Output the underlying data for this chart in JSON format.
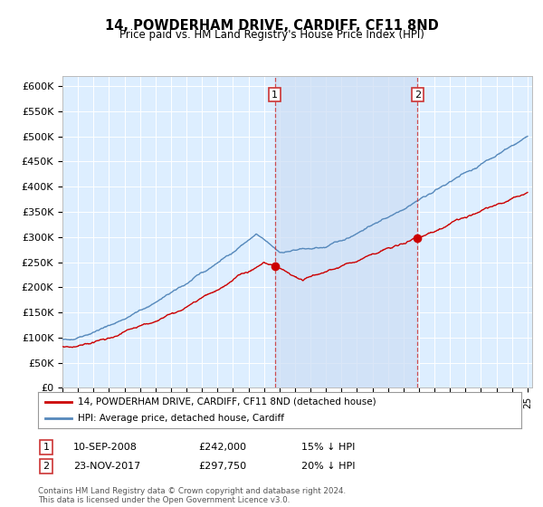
{
  "title": "14, POWDERHAM DRIVE, CARDIFF, CF11 8ND",
  "subtitle": "Price paid vs. HM Land Registry's House Price Index (HPI)",
  "legend_label_red": "14, POWDERHAM DRIVE, CARDIFF, CF11 8ND (detached house)",
  "legend_label_blue": "HPI: Average price, detached house, Cardiff",
  "transaction1_date": "10-SEP-2008",
  "transaction1_price": "£242,000",
  "transaction1_hpi": "15% ↓ HPI",
  "transaction1_year": 2008.7,
  "transaction1_value": 242000,
  "transaction2_date": "23-NOV-2017",
  "transaction2_price": "£297,750",
  "transaction2_hpi": "20% ↓ HPI",
  "transaction2_year": 2017.9,
  "transaction2_value": 297750,
  "footer": "Contains HM Land Registry data © Crown copyright and database right 2024.\nThis data is licensed under the Open Government Licence v3.0.",
  "ylim_max": 620000,
  "xlim_start": 1995,
  "xlim_end": 2025,
  "color_red": "#cc0000",
  "color_blue": "#5588bb",
  "color_dashed": "#cc3333",
  "background_plot": "#ddeeff",
  "background_highlight": "#ccddf5",
  "background_fig": "#ffffff",
  "grid_color": "#ffffff",
  "ytick_step": 50000
}
